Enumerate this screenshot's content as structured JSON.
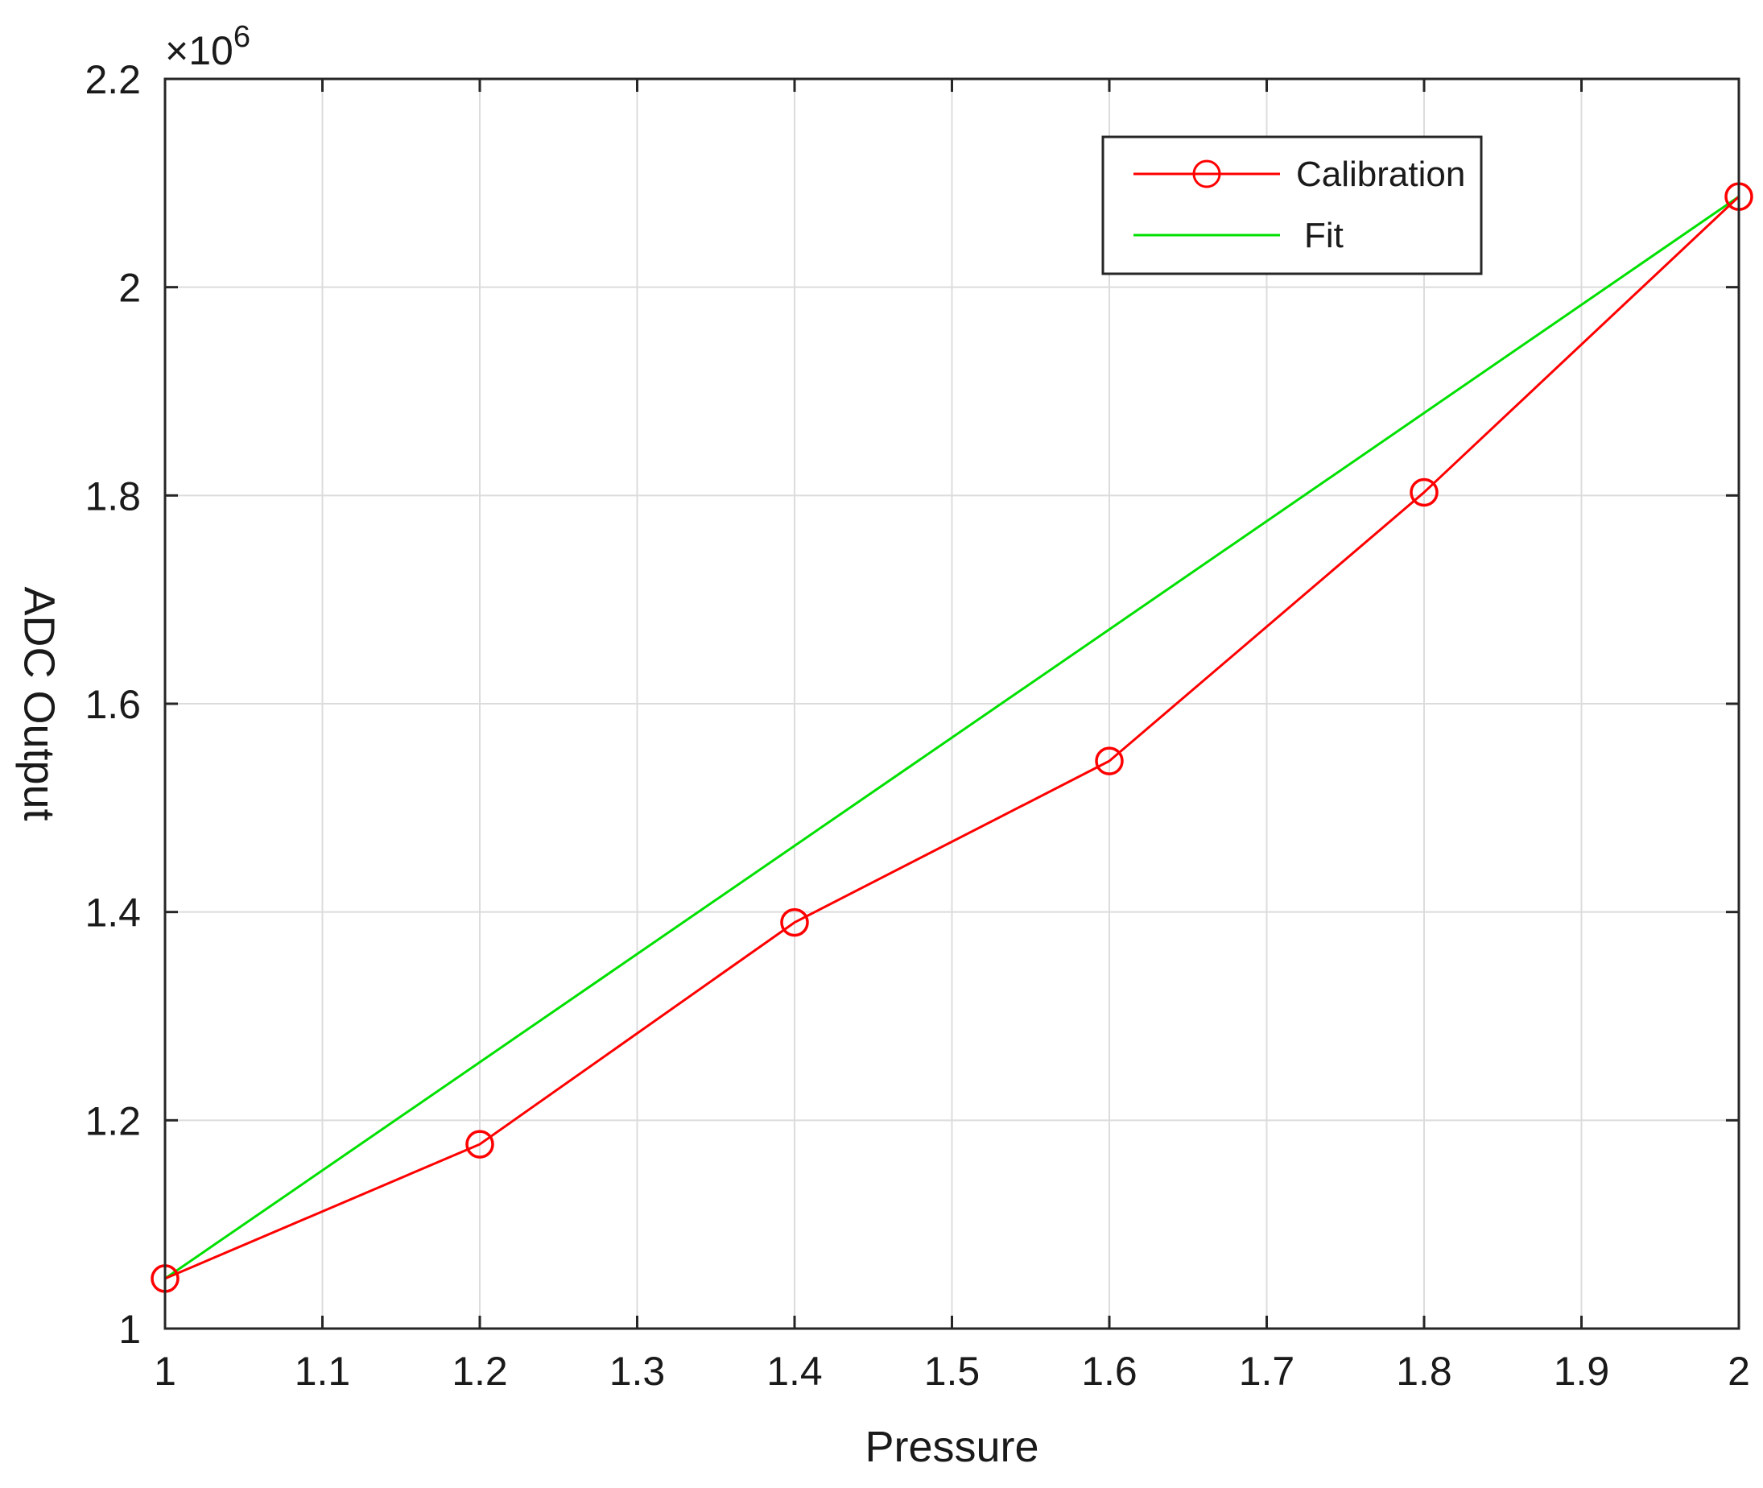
{
  "chart_data": {
    "type": "line",
    "title": "",
    "xlabel": "Pressure",
    "ylabel": "ADC Output",
    "y_exponent_label": "×10",
    "y_exponent_power": "6",
    "xlim": [
      1,
      2
    ],
    "ylim": [
      1,
      2.2
    ],
    "x_ticks": [
      1,
      1.1,
      1.2,
      1.3,
      1.4,
      1.5,
      1.6,
      1.7,
      1.8,
      1.9,
      2
    ],
    "x_tick_labels": [
      "1",
      "1.1",
      "1.2",
      "1.3",
      "1.4",
      "1.5",
      "1.6",
      "1.7",
      "1.8",
      "1.9",
      "2"
    ],
    "y_ticks": [
      1,
      1.2,
      1.4,
      1.6,
      1.8,
      2,
      2.2
    ],
    "y_tick_labels": [
      "1",
      "1.2",
      "1.4",
      "1.6",
      "1.8",
      "2",
      "2.2"
    ],
    "grid": true,
    "legend_position": "top-right",
    "series": [
      {
        "name": "Calibration",
        "color": "#ff0000",
        "marker": "circle",
        "x": [
          1,
          1.2,
          1.4,
          1.6,
          1.8,
          2
        ],
        "y": [
          1.048,
          1.177,
          1.39,
          1.545,
          1.803,
          2.087
        ]
      },
      {
        "name": "Fit",
        "color": "#00e000",
        "marker": "none",
        "x": [
          1,
          2
        ],
        "y": [
          1.048,
          2.087
        ]
      }
    ]
  }
}
